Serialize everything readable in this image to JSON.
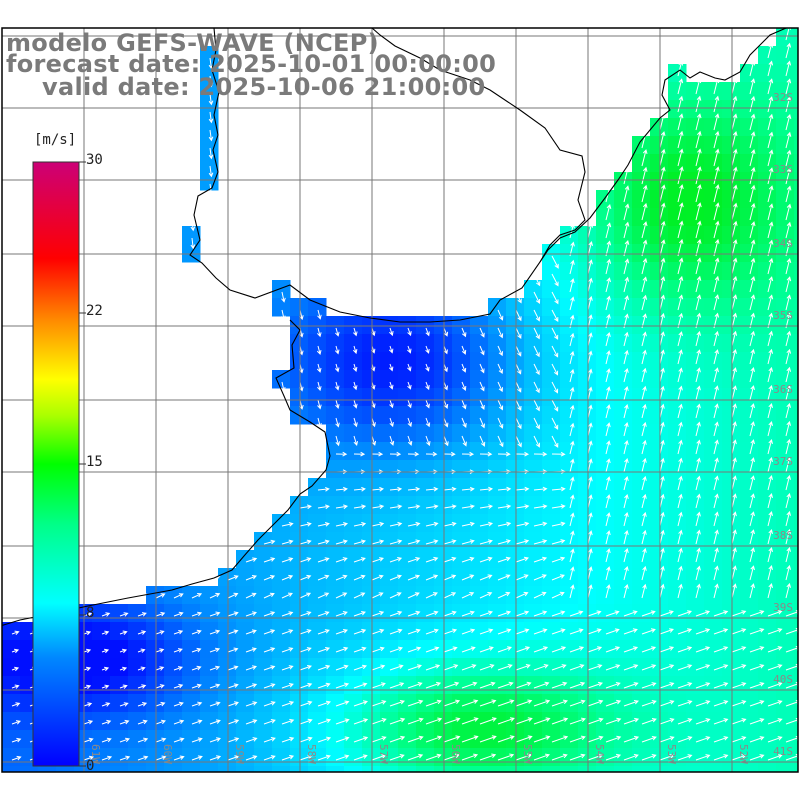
{
  "map": {
    "title_line1": "modelo GEFS-WAVE (NCEP)",
    "title_line2": "forecast date: 2025-10-01 00:00:00",
    "title_line3": "valid date: 2025-10-06 21:00:00",
    "field": "wind speed",
    "units": "[m/s]",
    "colorbar": {
      "min": 0,
      "max": 30,
      "tick_labels": [
        "30",
        "22",
        "15",
        "8",
        "0"
      ],
      "colors": [
        "#0000ff",
        "#00c8ff",
        "#00ffff",
        "#00ff00",
        "#ffff00",
        "#ff8000",
        "#ff0000",
        "#c00080"
      ]
    },
    "lat_labels": [
      "32S",
      "33S",
      "34S",
      "35S",
      "36S",
      "37S",
      "38S",
      "39S",
      "40S",
      "41S"
    ],
    "lon_labels": [
      "61W",
      "60W",
      "59W",
      "58W",
      "57W",
      "56W",
      "55W",
      "54W",
      "53W",
      "52W"
    ],
    "land_color": "#ffffff",
    "grid_color": "#777777",
    "arrow_color": "#ffffff"
  }
}
